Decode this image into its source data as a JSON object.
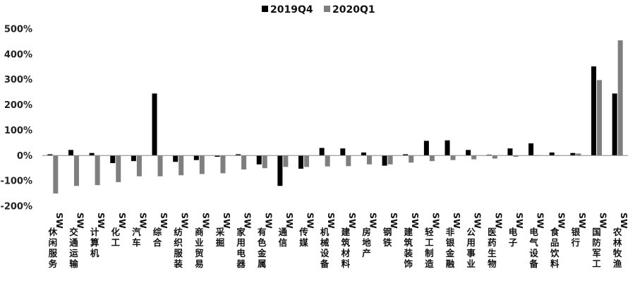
{
  "chart_data": {
    "type": "bar",
    "title": "",
    "xlabel": "",
    "ylabel": "",
    "ylim": [
      -200,
      500
    ],
    "yticks": [
      "-200%",
      "-100%",
      "0%",
      "100%",
      "200%",
      "300%",
      "400%",
      "500%"
    ],
    "grid": false,
    "legend_position": "top-center",
    "categories": [
      "SW休闲服务",
      "SW交通运输",
      "SW计算机",
      "SW化工",
      "SW汽车",
      "SW综合",
      "SW纺织服装",
      "SW商业贸易",
      "SW采掘",
      "SW家用电器",
      "SW有色金属",
      "SW通信",
      "SW传媒",
      "SW机械设备",
      "SW建筑材料",
      "SW房地产",
      "SW钢铁",
      "SW建筑装饰",
      "SW轻工制造",
      "SW非银金融",
      "SW公用事业",
      "SW医药生物",
      "SW电子",
      "SW电气设备",
      "SW食品饮料",
      "SW银行",
      "SW国防军工",
      "SW农林牧渔"
    ],
    "series": [
      {
        "name": "2019Q4",
        "color": "#000000",
        "values": [
          5,
          22,
          10,
          -30,
          -22,
          245,
          -25,
          -18,
          -5,
          5,
          -35,
          -120,
          -52,
          30,
          28,
          12,
          -40,
          5,
          58,
          60,
          22,
          3,
          28,
          48,
          12,
          10,
          352,
          245
        ]
      },
      {
        "name": "2020Q1",
        "color": "#7f7f7f",
        "values": [
          -150,
          -120,
          -117,
          -105,
          -82,
          -82,
          -78,
          -73,
          -70,
          -55,
          -50,
          -45,
          -45,
          -43,
          -42,
          -35,
          -35,
          -28,
          -22,
          -18,
          -15,
          -12,
          -5,
          0,
          0,
          8,
          298,
          455
        ]
      }
    ]
  }
}
